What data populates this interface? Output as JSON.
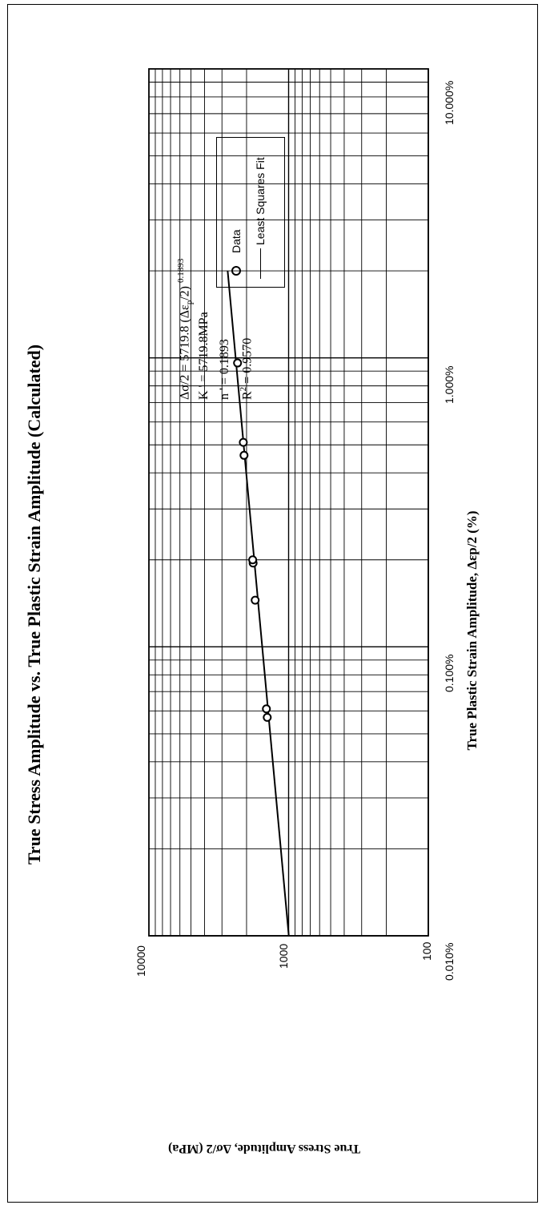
{
  "chart_data": {
    "type": "scatter",
    "title": "True Stress Amplitude vs. True Plastic Strain Amplitude (Calculated)",
    "xlabel": "True Plastic Strain Amplitude, Δεp/2 (%)",
    "ylabel": "True Stress Amplitude, Δσ/2 (MPa)",
    "x_scale": "log",
    "y_scale": "log",
    "xlim": [
      0.0001,
      0.1
    ],
    "ylim": [
      100,
      10000
    ],
    "x_ticks": [
      "0.010%",
      "0.100%",
      "1.000%",
      "10.000%"
    ],
    "y_ticks": [
      "100",
      "1000",
      "10000"
    ],
    "grid": true,
    "series": [
      {
        "name": "Data",
        "marker": "circle",
        "points": [
          {
            "x": 0.00057,
            "y": 1422
          },
          {
            "x": 0.00061,
            "y": 1442
          },
          {
            "x": 0.00145,
            "y": 1735
          },
          {
            "x": 0.00195,
            "y": 1795
          },
          {
            "x": 0.002,
            "y": 1808
          },
          {
            "x": 0.0046,
            "y": 2085
          },
          {
            "x": 0.0051,
            "y": 2110
          },
          {
            "x": 0.0096,
            "y": 2320
          }
        ]
      },
      {
        "name": "Least Squares Fit",
        "line": true,
        "points": [
          {
            "x": 0.0001,
            "y": 997
          },
          {
            "x": 0.02,
            "y": 2731
          }
        ]
      }
    ],
    "annotations": {
      "equation_main": "Δσ/2 = 5719.8 (Δε",
      "equation_sub": "p",
      "equation_close": "/2)",
      "equation_exp": "0.1893",
      "k_line": "K ' = 5719.8MPa",
      "n_line": "n ' = 0.1893",
      "r_label": "R",
      "r_exp": "2",
      "r_value": " = 0.9570"
    },
    "legend": {
      "placement": "right",
      "entries": [
        "Data",
        "Least Squares Fit"
      ]
    },
    "colors": {
      "data": "#000000",
      "fit": "#000000",
      "grid": "#000000"
    }
  }
}
